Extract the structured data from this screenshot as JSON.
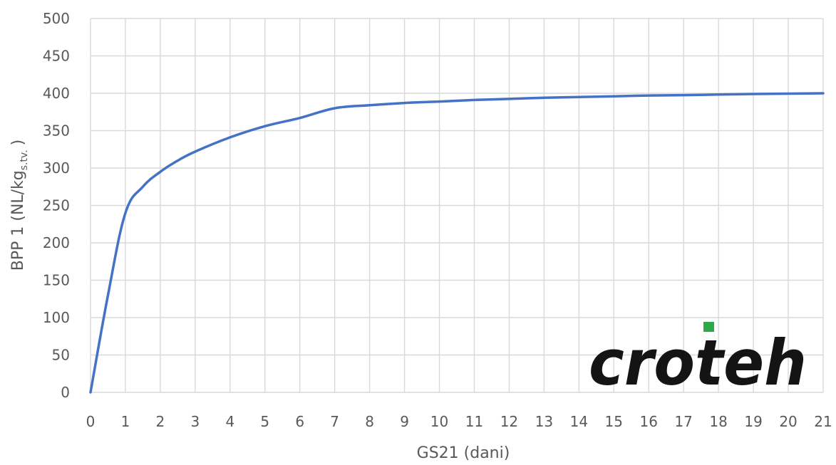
{
  "chart_data": {
    "type": "line",
    "xlabel": "GS21 (dani)",
    "ylabel_main": "BPP 1 (NL/kg",
    "ylabel_sub": "s.tv.",
    "ylabel_end": ")",
    "xlim": [
      0,
      21
    ],
    "ylim": [
      0,
      500
    ],
    "xticks": [
      0,
      1,
      2,
      3,
      4,
      5,
      6,
      7,
      8,
      9,
      10,
      11,
      12,
      13,
      14,
      15,
      16,
      17,
      18,
      19,
      20,
      21
    ],
    "yticks": [
      0,
      50,
      100,
      150,
      200,
      250,
      300,
      350,
      400,
      450,
      500
    ],
    "grid": true,
    "series": [
      {
        "color": "#4472c4",
        "x": [
          0,
          0.5,
          1,
          1.5,
          2,
          2.5,
          3,
          4,
          5,
          6,
          7,
          8,
          9,
          10,
          11,
          12,
          13,
          14,
          15,
          16,
          17,
          18,
          19,
          20,
          21
        ],
        "y": [
          0,
          130,
          240,
          275,
          295,
          310,
          322,
          341,
          356,
          367,
          380,
          384,
          387,
          389,
          391,
          392.5,
          394,
          395,
          396,
          397,
          397.5,
          398.3,
          399,
          399.5,
          400
        ]
      }
    ]
  },
  "logo": {
    "text": "croteh",
    "dot_color": "#2da84a"
  }
}
